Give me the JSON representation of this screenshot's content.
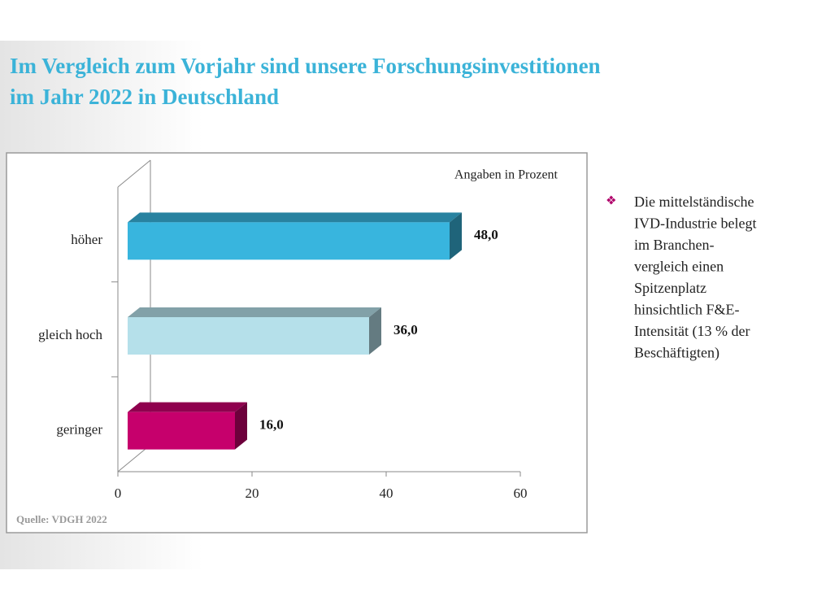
{
  "chart_data": {
    "type": "bar3d_h",
    "title": [
      "Im Vergleich zum Vorjahr sind unsere Forschungsinvestitionen",
      "im Jahr 2022 in Deutschland"
    ],
    "unit_note": "Angaben in Prozent",
    "source": "Quelle: VDGH 2022",
    "categories": [
      "höher",
      "gleich hoch",
      "geringer"
    ],
    "values": [
      48,
      36,
      16
    ],
    "value_labels": [
      "48,0",
      "36,0",
      "16,0"
    ],
    "colors": [
      "#38b5de",
      "#b5e0ea",
      "#c6006c"
    ],
    "xlim": [
      0,
      60
    ],
    "xticks": [
      0,
      20,
      40,
      60
    ]
  },
  "side_text": {
    "bullet": "❖",
    "lines": [
      "Die mittelständische",
      "IVD-Industrie belegt",
      "im Branchen-",
      "vergleich einen",
      "Spitzenplatz",
      "hinsichtlich F&E-",
      "Intensität (13 % der",
      "Beschäftigten)"
    ]
  }
}
